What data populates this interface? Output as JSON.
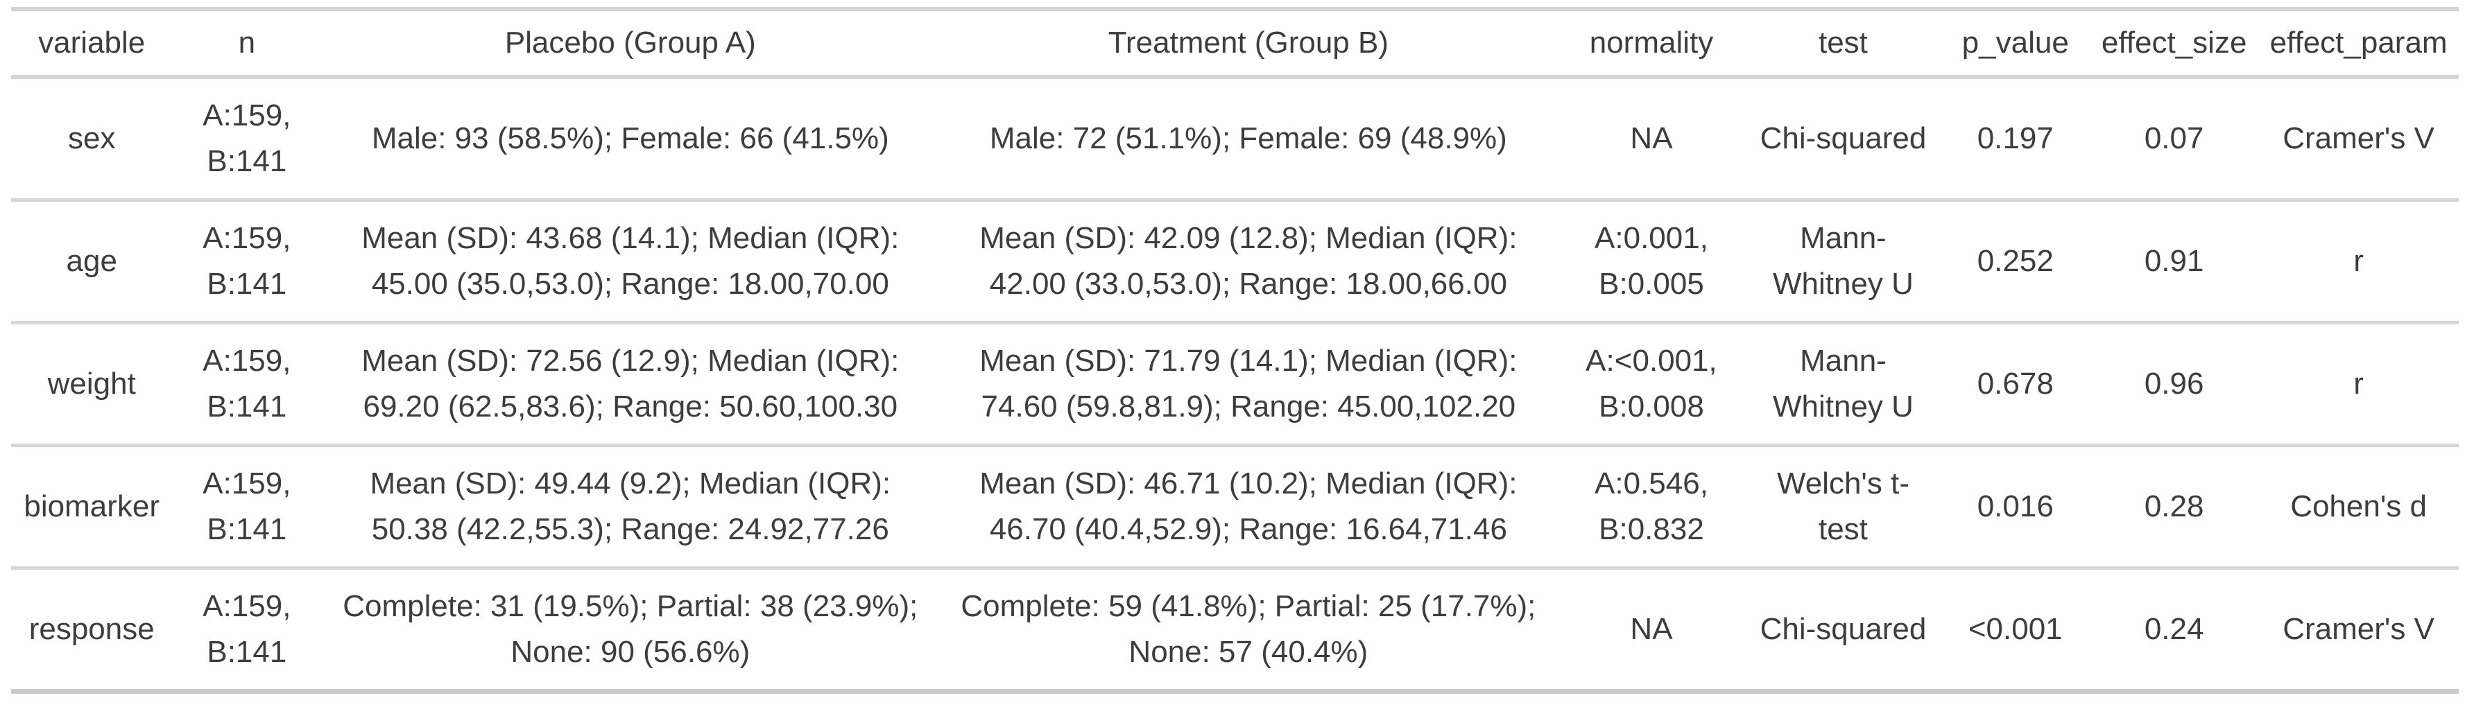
{
  "chart_data": {
    "type": "table",
    "columns": [
      {
        "key": "variable",
        "label": "variable"
      },
      {
        "key": "n",
        "label": "n"
      },
      {
        "key": "placebo",
        "label": "Placebo (Group A)"
      },
      {
        "key": "treatment",
        "label": "Treatment (Group B)"
      },
      {
        "key": "normality",
        "label": "normality"
      },
      {
        "key": "test",
        "label": "test"
      },
      {
        "key": "p_value",
        "label": "p_value"
      },
      {
        "key": "effect_size",
        "label": "effect_size"
      },
      {
        "key": "effect_param",
        "label": "effect_param"
      }
    ],
    "rows": [
      {
        "variable": "sex",
        "n": "A:159, B:141",
        "placebo": "Male: 93 (58.5%); Female: 66 (41.5%)",
        "treatment": "Male: 72 (51.1%); Female: 69 (48.9%)",
        "normality": "NA",
        "test": "Chi-squared",
        "p_value": "0.197",
        "effect_size": "0.07",
        "effect_param": "Cramer's V"
      },
      {
        "variable": "age",
        "n": "A:159, B:141",
        "placebo": "Mean (SD): 43.68 (14.1); Median (IQR): 45.00 (35.0,53.0); Range: 18.00,70.00",
        "treatment": "Mean (SD): 42.09 (12.8); Median (IQR): 42.00 (33.0,53.0); Range: 18.00,66.00",
        "normality": "A:0.001, B:0.005",
        "test": "Mann-Whitney U",
        "p_value": "0.252",
        "effect_size": "0.91",
        "effect_param": "r"
      },
      {
        "variable": "weight",
        "n": "A:159, B:141",
        "placebo": "Mean (SD): 72.56 (12.9); Median (IQR): 69.20 (62.5,83.6); Range: 50.60,100.30",
        "treatment": "Mean (SD): 71.79 (14.1); Median (IQR): 74.60 (59.8,81.9); Range: 45.00,102.20",
        "normality": "A:<0.001, B:0.008",
        "test": "Mann-Whitney U",
        "p_value": "0.678",
        "effect_size": "0.96",
        "effect_param": "r"
      },
      {
        "variable": "biomarker",
        "n": "A:159, B:141",
        "placebo": "Mean (SD): 49.44 (9.2); Median (IQR): 50.38 (42.2,55.3); Range: 24.92,77.26",
        "treatment": "Mean (SD): 46.71 (10.2); Median (IQR): 46.70 (40.4,52.9); Range: 16.64,71.46",
        "normality": "A:0.546, B:0.832",
        "test": "Welch's t-test",
        "p_value": "0.016",
        "effect_size": "0.28",
        "effect_param": "Cohen's d"
      },
      {
        "variable": "response",
        "n": "A:159, B:141",
        "placebo": "Complete: 31 (19.5%); Partial: 38 (23.9%); None: 90 (56.6%)",
        "treatment": "Complete: 59 (41.8%); Partial: 25 (17.7%); None: 57 (40.4%)",
        "normality": "NA",
        "test": "Chi-squared",
        "p_value": "<0.001",
        "effect_size": "0.24",
        "effect_param": "Cramer's V"
      }
    ],
    "title": "",
    "layout_hints": {
      "grid": "horizontal-rules-only",
      "text_align": "center",
      "colors": {
        "rule": "#d4d4d4",
        "rule_bottom": "#cbcbcb",
        "text": "#3d3d3d",
        "background": "#ffffff"
      }
    }
  }
}
